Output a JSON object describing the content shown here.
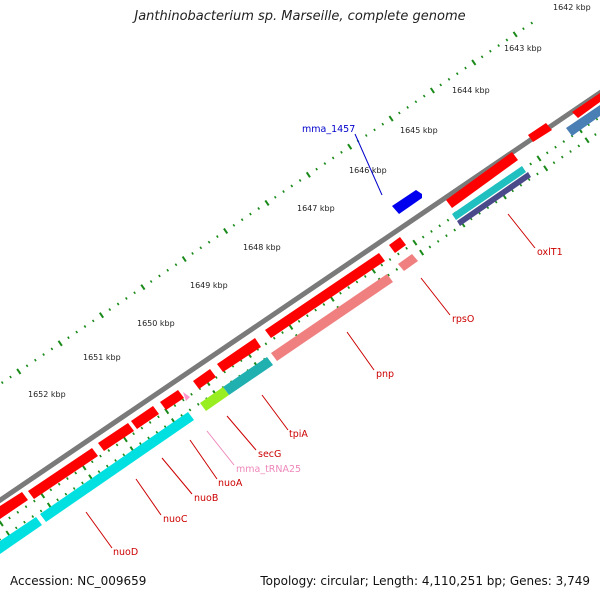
{
  "title": "Janthinobacterium sp. Marseille, complete genome",
  "footer": {
    "accession": "Accession: NC_009659",
    "summary": "Topology: circular; Length: 4,110,251 bp; Genes: 3,749"
  },
  "ticks": [
    "1642 kbp",
    "1643 kbp",
    "1644 kbp",
    "1645 kbp",
    "1646 kbp",
    "1647 kbp",
    "1648 kbp",
    "1649 kbp",
    "1650 kbp",
    "1651 kbp",
    "1652 kbp"
  ],
  "genes": [
    {
      "id": "mma_1457",
      "label": "mma_1457",
      "color": "#0000cc"
    },
    {
      "id": "oxlT1",
      "label": "oxlT1",
      "color": "#cc0000"
    },
    {
      "id": "rpsO",
      "label": "rpsO",
      "color": "#cc0000"
    },
    {
      "id": "pnp",
      "label": "pnp",
      "color": "#cc0000"
    },
    {
      "id": "tpiA",
      "label": "tpiA",
      "color": "#cc0000"
    },
    {
      "id": "secG",
      "label": "secG",
      "color": "#cc0000"
    },
    {
      "id": "mma_tRNA25",
      "label": "mma_tRNA25",
      "color": "#ee88bb"
    },
    {
      "id": "nuoA",
      "label": "nuoA",
      "color": "#cc0000"
    },
    {
      "id": "nuoB",
      "label": "nuoB",
      "color": "#cc0000"
    },
    {
      "id": "nuoC",
      "label": "nuoC",
      "color": "#cc0000"
    },
    {
      "id": "nuoD",
      "label": "nuoD",
      "color": "#cc0000"
    }
  ],
  "colors": {
    "backbone": "#808080",
    "cds": "#ff0000",
    "pseudo_pink": "#f08080",
    "cog_cyan": "#00e0e0",
    "cog_teal": "#20b0b0",
    "cog_green": "#99ee22",
    "cog_navy": "#4a4a8a",
    "cog_steel": "#4a7fb5",
    "trna_pink": "#ff99cc",
    "tick_green": "#1a8a1a",
    "blue_gene": "#0000ee"
  }
}
